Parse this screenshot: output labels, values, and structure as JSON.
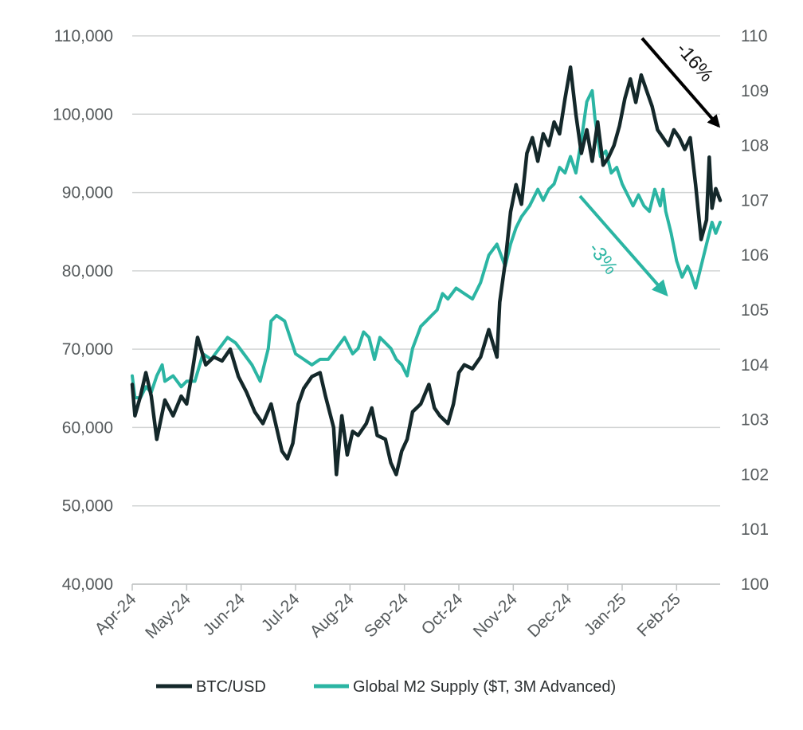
{
  "chart_data": {
    "type": "line",
    "title": "",
    "x": [
      "Apr-24",
      "May-24",
      "Jun-24",
      "Jul-24",
      "Aug-24",
      "Sep-24",
      "Oct-24",
      "Nov-24",
      "Dec-24",
      "Jan-25",
      "Feb-25"
    ],
    "left_axis": {
      "min": 40000,
      "max": 110000,
      "ticks": [
        "40,000",
        "50,000",
        "60,000",
        "70,000",
        "80,000",
        "90,000",
        "100,000",
        "110,000"
      ]
    },
    "right_axis": {
      "min": 100,
      "max": 110,
      "ticks": [
        "100",
        "101",
        "102",
        "103",
        "104",
        "105",
        "106",
        "107",
        "108",
        "109",
        "110"
      ]
    },
    "grid": true,
    "legend_position": "bottom",
    "series": [
      {
        "name": "BTC/USD",
        "axis": "left",
        "color": "#14282a",
        "points": [
          [
            0,
            65500
          ],
          [
            0.05,
            61500
          ],
          [
            0.15,
            64000
          ],
          [
            0.25,
            67000
          ],
          [
            0.35,
            64000
          ],
          [
            0.45,
            58500
          ],
          [
            0.6,
            63500
          ],
          [
            0.75,
            61500
          ],
          [
            0.9,
            64000
          ],
          [
            1.0,
            63000
          ],
          [
            1.1,
            67000
          ],
          [
            1.2,
            71500
          ],
          [
            1.35,
            68000
          ],
          [
            1.5,
            69000
          ],
          [
            1.65,
            68500
          ],
          [
            1.8,
            70000
          ],
          [
            1.95,
            66500
          ],
          [
            2.1,
            64500
          ],
          [
            2.25,
            62000
          ],
          [
            2.4,
            60500
          ],
          [
            2.55,
            63000
          ],
          [
            2.65,
            60000
          ],
          [
            2.75,
            57000
          ],
          [
            2.85,
            56000
          ],
          [
            2.95,
            58000
          ],
          [
            3.05,
            63000
          ],
          [
            3.15,
            65000
          ],
          [
            3.3,
            66500
          ],
          [
            3.45,
            67000
          ],
          [
            3.55,
            64000
          ],
          [
            3.7,
            60000
          ],
          [
            3.75,
            54000
          ],
          [
            3.85,
            61500
          ],
          [
            3.95,
            56500
          ],
          [
            4.05,
            59500
          ],
          [
            4.15,
            59000
          ],
          [
            4.3,
            60500
          ],
          [
            4.4,
            62500
          ],
          [
            4.5,
            59000
          ],
          [
            4.65,
            58500
          ],
          [
            4.75,
            55500
          ],
          [
            4.85,
            54000
          ],
          [
            4.95,
            57000
          ],
          [
            5.05,
            58500
          ],
          [
            5.15,
            62000
          ],
          [
            5.3,
            63000
          ],
          [
            5.45,
            65500
          ],
          [
            5.55,
            62500
          ],
          [
            5.65,
            61500
          ],
          [
            5.8,
            60500
          ],
          [
            5.9,
            63000
          ],
          [
            6.0,
            67000
          ],
          [
            6.1,
            68000
          ],
          [
            6.25,
            67500
          ],
          [
            6.4,
            69000
          ],
          [
            6.55,
            72500
          ],
          [
            6.7,
            69000
          ],
          [
            6.75,
            76000
          ],
          [
            6.85,
            81000
          ],
          [
            6.95,
            87500
          ],
          [
            7.05,
            91000
          ],
          [
            7.15,
            88500
          ],
          [
            7.25,
            95000
          ],
          [
            7.35,
            97000
          ],
          [
            7.45,
            94000
          ],
          [
            7.55,
            97500
          ],
          [
            7.65,
            96000
          ],
          [
            7.75,
            99000
          ],
          [
            7.85,
            97500
          ],
          [
            7.95,
            102000
          ],
          [
            8.05,
            106000
          ],
          [
            8.15,
            100000
          ],
          [
            8.25,
            95000
          ],
          [
            8.35,
            98000
          ],
          [
            8.45,
            94000
          ],
          [
            8.55,
            99000
          ],
          [
            8.65,
            93500
          ],
          [
            8.75,
            94500
          ],
          [
            8.85,
            96000
          ],
          [
            8.95,
            98500
          ],
          [
            9.05,
            102000
          ],
          [
            9.15,
            104500
          ],
          [
            9.25,
            101500
          ],
          [
            9.35,
            105000
          ],
          [
            9.45,
            103000
          ],
          [
            9.55,
            101000
          ],
          [
            9.65,
            98000
          ],
          [
            9.75,
            97000
          ],
          [
            9.85,
            96000
          ],
          [
            9.95,
            98000
          ],
          [
            10.05,
            97000
          ],
          [
            10.15,
            95500
          ],
          [
            10.25,
            97000
          ],
          [
            10.35,
            91000
          ],
          [
            10.45,
            84000
          ],
          [
            10.55,
            86500
          ],
          [
            10.6,
            94500
          ],
          [
            10.65,
            88000
          ],
          [
            10.72,
            90500
          ],
          [
            10.8,
            89000
          ]
        ]
      },
      {
        "name": "Global M2 Supply ($T, 3M Advanced)",
        "axis": "right",
        "color": "#2bb5a3",
        "points": [
          [
            0,
            103.8
          ],
          [
            0.05,
            103.4
          ],
          [
            0.15,
            103.4
          ],
          [
            0.25,
            103.6
          ],
          [
            0.35,
            103.5
          ],
          [
            0.45,
            103.8
          ],
          [
            0.55,
            104.0
          ],
          [
            0.6,
            103.7
          ],
          [
            0.75,
            103.8
          ],
          [
            0.9,
            103.6
          ],
          [
            1.0,
            103.7
          ],
          [
            1.15,
            103.7
          ],
          [
            1.3,
            104.2
          ],
          [
            1.45,
            104.1
          ],
          [
            1.6,
            104.3
          ],
          [
            1.75,
            104.5
          ],
          [
            1.9,
            104.4
          ],
          [
            2.05,
            104.2
          ],
          [
            2.2,
            104.0
          ],
          [
            2.35,
            103.7
          ],
          [
            2.5,
            104.3
          ],
          [
            2.55,
            104.8
          ],
          [
            2.65,
            104.9
          ],
          [
            2.8,
            104.8
          ],
          [
            2.9,
            104.5
          ],
          [
            3.0,
            104.2
          ],
          [
            3.15,
            104.1
          ],
          [
            3.3,
            104.0
          ],
          [
            3.45,
            104.1
          ],
          [
            3.6,
            104.1
          ],
          [
            3.75,
            104.3
          ],
          [
            3.9,
            104.5
          ],
          [
            4.05,
            104.2
          ],
          [
            4.15,
            104.3
          ],
          [
            4.25,
            104.6
          ],
          [
            4.35,
            104.5
          ],
          [
            4.45,
            104.1
          ],
          [
            4.55,
            104.5
          ],
          [
            4.65,
            104.4
          ],
          [
            4.75,
            104.3
          ],
          [
            4.85,
            104.1
          ],
          [
            4.95,
            104.0
          ],
          [
            5.05,
            103.8
          ],
          [
            5.15,
            104.3
          ],
          [
            5.3,
            104.7
          ],
          [
            5.4,
            104.8
          ],
          [
            5.5,
            104.9
          ],
          [
            5.6,
            105.0
          ],
          [
            5.7,
            105.3
          ],
          [
            5.8,
            105.2
          ],
          [
            5.95,
            105.4
          ],
          [
            6.1,
            105.3
          ],
          [
            6.25,
            105.2
          ],
          [
            6.4,
            105.5
          ],
          [
            6.55,
            106.0
          ],
          [
            6.7,
            106.2
          ],
          [
            6.85,
            105.8
          ],
          [
            6.95,
            106.2
          ],
          [
            7.05,
            106.5
          ],
          [
            7.15,
            106.7
          ],
          [
            7.3,
            106.9
          ],
          [
            7.45,
            107.2
          ],
          [
            7.55,
            107.0
          ],
          [
            7.65,
            107.2
          ],
          [
            7.75,
            107.3
          ],
          [
            7.85,
            107.6
          ],
          [
            7.95,
            107.5
          ],
          [
            8.05,
            107.8
          ],
          [
            8.15,
            107.5
          ],
          [
            8.25,
            108.1
          ],
          [
            8.35,
            108.8
          ],
          [
            8.45,
            109.0
          ],
          [
            8.5,
            108.5
          ],
          [
            8.6,
            107.8
          ],
          [
            8.7,
            107.9
          ],
          [
            8.8,
            107.5
          ],
          [
            8.9,
            107.6
          ],
          [
            9.0,
            107.3
          ],
          [
            9.1,
            107.1
          ],
          [
            9.2,
            106.9
          ],
          [
            9.3,
            107.1
          ],
          [
            9.4,
            106.9
          ],
          [
            9.5,
            106.8
          ],
          [
            9.6,
            107.2
          ],
          [
            9.7,
            106.9
          ],
          [
            9.75,
            107.2
          ],
          [
            9.8,
            106.8
          ],
          [
            9.85,
            106.6
          ],
          [
            9.9,
            106.4
          ],
          [
            10.0,
            105.9
          ],
          [
            10.1,
            105.6
          ],
          [
            10.2,
            105.8
          ],
          [
            10.25,
            105.7
          ],
          [
            10.35,
            105.4
          ],
          [
            10.45,
            105.8
          ],
          [
            10.55,
            106.2
          ],
          [
            10.65,
            106.6
          ],
          [
            10.72,
            106.4
          ],
          [
            10.8,
            106.6
          ]
        ]
      }
    ],
    "annotations": [
      {
        "text": "-16%",
        "series": "BTC/USD"
      },
      {
        "text": "-3%",
        "series": "Global M2 Supply ($T, 3M Advanced)"
      }
    ]
  }
}
